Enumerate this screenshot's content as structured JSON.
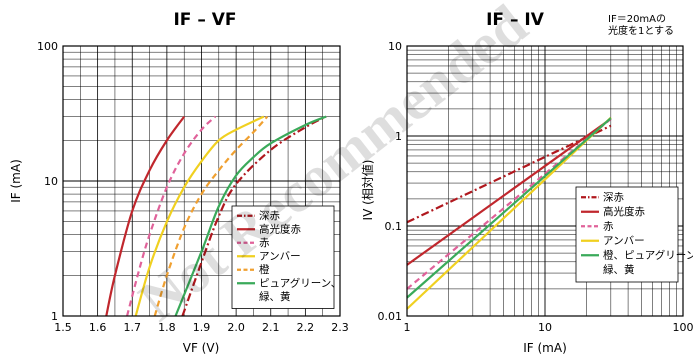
{
  "watermark": "Not Recommended",
  "chart_data": [
    {
      "type": "line",
      "title": "IF – VF",
      "xlabel": "VF (V)",
      "ylabel": "IF (mA)",
      "xlim": [
        1.5,
        2.3
      ],
      "ylim": [
        1,
        100
      ],
      "yscale": "log",
      "x_ticks": [
        "1.5",
        "1.6",
        "1.7",
        "1.8",
        "1.9",
        "2.0",
        "2.1",
        "2.2",
        "2.3"
      ],
      "y_ticks": [
        "1",
        "10",
        "100"
      ],
      "grid": true,
      "legend_position": "bottom-right",
      "series": [
        {
          "name": "深赤",
          "color": "#b0181e",
          "dash": "dashdot",
          "points": [
            [
              1.845,
              1.0
            ],
            [
              1.9,
              2.5
            ],
            [
              1.95,
              5.5
            ],
            [
              2.0,
              9.5
            ],
            [
              2.1,
              17.0
            ],
            [
              2.2,
              25.0
            ],
            [
              2.26,
              30.0
            ]
          ]
        },
        {
          "name": "高光度赤",
          "color": "#c0272d",
          "dash": "solid",
          "points": [
            [
              1.625,
              1.0
            ],
            [
              1.65,
              2.0
            ],
            [
              1.7,
              6.0
            ],
            [
              1.75,
              12.0
            ],
            [
              1.8,
              20.0
            ],
            [
              1.85,
              30.0
            ]
          ]
        },
        {
          "name": "赤",
          "color": "#e0629a",
          "dash": "dash",
          "points": [
            [
              1.685,
              1.0
            ],
            [
              1.72,
              2.2
            ],
            [
              1.75,
              4.0
            ],
            [
              1.8,
              9.0
            ],
            [
              1.85,
              16.0
            ],
            [
              1.9,
              24.0
            ],
            [
              1.94,
              30.0
            ]
          ]
        },
        {
          "name": "アンバー",
          "color": "#f0d020",
          "dash": "solid",
          "points": [
            [
              1.71,
              1.0
            ],
            [
              1.75,
              2.3
            ],
            [
              1.8,
              5.0
            ],
            [
              1.85,
              9.0
            ],
            [
              1.9,
              14.0
            ],
            [
              1.95,
              20.0
            ],
            [
              2.0,
              24.0
            ],
            [
              2.08,
              30.0
            ]
          ]
        },
        {
          "name": "橙",
          "color": "#f0a030",
          "dash": "dash",
          "points": [
            [
              1.765,
              1.0
            ],
            [
              1.8,
              2.0
            ],
            [
              1.85,
              4.5
            ],
            [
              1.9,
              8.0
            ],
            [
              1.95,
              12.0
            ],
            [
              2.0,
              17.0
            ],
            [
              2.05,
              23.0
            ],
            [
              2.09,
              30.0
            ]
          ]
        },
        {
          "name": "ピュアグリーン、緑、黄",
          "color": "#3aaa5a",
          "dash": "solid",
          "points": [
            [
              1.825,
              1.0
            ],
            [
              1.9,
              3.0
            ],
            [
              1.95,
              6.5
            ],
            [
              2.0,
              11.0
            ],
            [
              2.05,
              15.0
            ],
            [
              2.1,
              19.0
            ],
            [
              2.2,
              26.0
            ],
            [
              2.26,
              30.0
            ]
          ]
        }
      ]
    },
    {
      "type": "line",
      "title": "IF – IV",
      "note_line1": "IF＝20mAの",
      "note_line2": "光度を1とする",
      "xlabel": "IF (mA)",
      "ylabel": "IV (相対値)",
      "xlim": [
        1,
        100
      ],
      "ylim": [
        0.01,
        10
      ],
      "xscale": "log",
      "yscale": "log",
      "x_ticks": [
        "1",
        "10",
        "100"
      ],
      "y_ticks": [
        "0.01",
        "0.1",
        "1",
        "10"
      ],
      "grid": true,
      "legend_position": "bottom-right",
      "series": [
        {
          "name": "深赤",
          "color": "#b0181e",
          "dash": "dashdot",
          "points": [
            [
              1,
              0.11
            ],
            [
              30,
              1.3
            ]
          ]
        },
        {
          "name": "高光度赤",
          "color": "#c0272d",
          "dash": "solid",
          "points": [
            [
              1,
              0.037
            ],
            [
              30,
              1.55
            ]
          ]
        },
        {
          "name": "赤",
          "color": "#e0629a",
          "dash": "dash",
          "points": [
            [
              1,
              0.02
            ],
            [
              30,
              1.55
            ]
          ]
        },
        {
          "name": "アンバー",
          "color": "#f0d020",
          "dash": "solid",
          "points": [
            [
              1,
              0.012
            ],
            [
              30,
              1.6
            ]
          ]
        },
        {
          "name": "橙、ピュアグリーン、緑、黄",
          "color": "#3aaa5a",
          "dash": "solid",
          "points": [
            [
              1,
              0.016
            ],
            [
              30,
              1.58
            ]
          ]
        }
      ]
    }
  ]
}
